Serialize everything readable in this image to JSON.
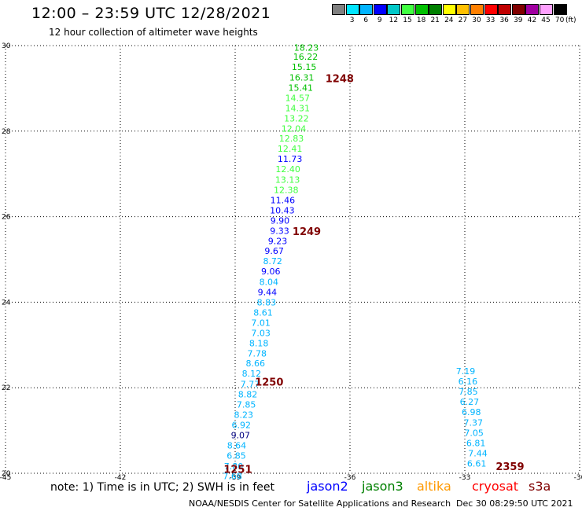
{
  "header": {
    "title": "12:00 – 23:59 UTC 12/28/2021",
    "subtitle": "12 hour collection of altimeter wave heights"
  },
  "colorbar": {
    "unit": "(ft)",
    "items": [
      {
        "label": "",
        "color": "#808080"
      },
      {
        "label": "3",
        "color": "#00e5ff"
      },
      {
        "label": "6",
        "color": "#00b4ff"
      },
      {
        "label": "9",
        "color": "#0000ff"
      },
      {
        "label": "12",
        "color": "#00c8c8"
      },
      {
        "label": "15",
        "color": "#40ff40"
      },
      {
        "label": "18",
        "color": "#00c000"
      },
      {
        "label": "21",
        "color": "#008000"
      },
      {
        "label": "24",
        "color": "#ffff00"
      },
      {
        "label": "27",
        "color": "#ffc000"
      },
      {
        "label": "30",
        "color": "#ff8000"
      },
      {
        "label": "33",
        "color": "#ff0000"
      },
      {
        "label": "36",
        "color": "#c00000"
      },
      {
        "label": "39",
        "color": "#800000"
      },
      {
        "label": "42",
        "color": "#a000a0"
      },
      {
        "label": "45",
        "color": "#ffa0ff"
      },
      {
        "label": "70",
        "color": "#000000"
      }
    ]
  },
  "footer": {
    "note": "note:  1) Time is in UTC;  2) SWH is in feet",
    "satellites": [
      {
        "name": "jason2",
        "color": "#0000ff"
      },
      {
        "name": "jason3",
        "color": "#008000"
      },
      {
        "name": "altika",
        "color": "#ff9900"
      },
      {
        "name": "cryosat",
        "color": "#ff0000"
      },
      {
        "name": "s3a",
        "color": "#800000"
      }
    ],
    "credit": "NOAA/NESDIS Center for Satellite Applications and Research",
    "generated": "Dec 30 08:29:50 UTC 2021"
  },
  "chart_data": {
    "type": "scatter",
    "title": "12:00 – 23:59 UTC 12/28/2021",
    "subtitle": "12 hour collection of altimeter wave heights",
    "xlim": [
      -45,
      -30
    ],
    "ylim": [
      20,
      30
    ],
    "grid": true,
    "x_ticks": [
      "-45",
      "-42",
      "-39",
      "-36",
      "-33",
      "-30"
    ],
    "y_ticks": [
      "20",
      "22",
      "24",
      "26",
      "28",
      "30"
    ],
    "points": [
      {
        "x": -37.14,
        "y": 29.95,
        "label": "18.23",
        "color": "#00c000"
      },
      {
        "x": -37.16,
        "y": 29.74,
        "label": "16.22",
        "color": "#00c000"
      },
      {
        "x": -37.2,
        "y": 29.5,
        "label": "15.15",
        "color": "#00c000"
      },
      {
        "x": -37.26,
        "y": 29.26,
        "label": "16.31",
        "color": "#00c000"
      },
      {
        "x": -37.29,
        "y": 29.02,
        "label": "15.41",
        "color": "#00c000"
      },
      {
        "x": -37.37,
        "y": 28.78,
        "label": "14.57",
        "color": "#40ff40"
      },
      {
        "x": -37.37,
        "y": 28.54,
        "label": "14.31",
        "color": "#40ff40"
      },
      {
        "x": -37.4,
        "y": 28.3,
        "label": "13.22",
        "color": "#40ff40"
      },
      {
        "x": -37.47,
        "y": 28.06,
        "label": "12.04",
        "color": "#40ff40"
      },
      {
        "x": -37.53,
        "y": 27.83,
        "label": "12.83",
        "color": "#40ff40"
      },
      {
        "x": -37.57,
        "y": 27.59,
        "label": "12.41",
        "color": "#40ff40"
      },
      {
        "x": -37.57,
        "y": 27.35,
        "label": "11.73",
        "color": "#0000ff"
      },
      {
        "x": -37.62,
        "y": 27.11,
        "label": "12.40",
        "color": "#40ff40"
      },
      {
        "x": -37.63,
        "y": 26.87,
        "label": "13.13",
        "color": "#40ff40"
      },
      {
        "x": -37.67,
        "y": 26.63,
        "label": "12.38",
        "color": "#40ff40"
      },
      {
        "x": -37.76,
        "y": 26.39,
        "label": "11.46",
        "color": "#0000ff"
      },
      {
        "x": -37.77,
        "y": 26.15,
        "label": "10.43",
        "color": "#0000ff"
      },
      {
        "x": -37.83,
        "y": 25.91,
        "label": "9.90",
        "color": "#0000ff"
      },
      {
        "x": -37.84,
        "y": 25.67,
        "label": "9.33",
        "color": "#0000ff"
      },
      {
        "x": -37.89,
        "y": 25.43,
        "label": "9.23",
        "color": "#0000ff"
      },
      {
        "x": -37.98,
        "y": 25.2,
        "label": "9.67",
        "color": "#0000ff"
      },
      {
        "x": -38.02,
        "y": 24.96,
        "label": "8.72",
        "color": "#00b4ff"
      },
      {
        "x": -38.07,
        "y": 24.72,
        "label": "9.06",
        "color": "#0000ff"
      },
      {
        "x": -38.12,
        "y": 24.48,
        "label": "8.04",
        "color": "#00b4ff"
      },
      {
        "x": -38.16,
        "y": 24.24,
        "label": "9.44",
        "color": "#0000ff"
      },
      {
        "x": -38.18,
        "y": 24.0,
        "label": "8.83",
        "color": "#00b4ff"
      },
      {
        "x": -38.27,
        "y": 23.76,
        "label": "8.61",
        "color": "#00b4ff"
      },
      {
        "x": -38.33,
        "y": 23.52,
        "label": "7.01",
        "color": "#00b4ff"
      },
      {
        "x": -38.33,
        "y": 23.28,
        "label": "7.03",
        "color": "#00b4ff"
      },
      {
        "x": -38.38,
        "y": 23.04,
        "label": "8.18",
        "color": "#00b4ff"
      },
      {
        "x": -38.43,
        "y": 22.8,
        "label": "7.78",
        "color": "#00b4ff"
      },
      {
        "x": -38.47,
        "y": 22.57,
        "label": "8.66",
        "color": "#00b4ff"
      },
      {
        "x": -38.57,
        "y": 22.33,
        "label": "8.12",
        "color": "#00b4ff"
      },
      {
        "x": -38.61,
        "y": 22.09,
        "label": "7.77",
        "color": "#00b4ff"
      },
      {
        "x": -38.67,
        "y": 21.85,
        "label": "8.82",
        "color": "#00b4ff"
      },
      {
        "x": -38.71,
        "y": 21.61,
        "label": "7.85",
        "color": "#00b4ff"
      },
      {
        "x": -38.78,
        "y": 21.37,
        "label": "8.23",
        "color": "#00b4ff"
      },
      {
        "x": -38.84,
        "y": 21.13,
        "label": "6.92",
        "color": "#00b4ff"
      },
      {
        "x": -38.86,
        "y": 20.89,
        "label": "9.07",
        "color": "#000080"
      },
      {
        "x": -38.96,
        "y": 20.65,
        "label": "8.64",
        "color": "#00b4ff"
      },
      {
        "x": -38.97,
        "y": 20.41,
        "label": "6.85",
        "color": "#00b4ff"
      },
      {
        "x": -39.04,
        "y": 20.17,
        "label": "7.80",
        "color": "#00b4ff"
      },
      {
        "x": -39.07,
        "y": 19.94,
        "label": "7.68",
        "color": "#00b4ff"
      },
      {
        "x": -32.98,
        "y": 22.39,
        "label": "7.19",
        "color": "#00b4ff"
      },
      {
        "x": -32.92,
        "y": 22.15,
        "label": "6.16",
        "color": "#00b4ff"
      },
      {
        "x": -32.91,
        "y": 21.91,
        "label": "7.85",
        "color": "#00b4ff"
      },
      {
        "x": -32.88,
        "y": 21.67,
        "label": "6.27",
        "color": "#00b4ff"
      },
      {
        "x": -32.83,
        "y": 21.43,
        "label": "6.98",
        "color": "#00b4ff"
      },
      {
        "x": -32.78,
        "y": 21.19,
        "label": "7.37",
        "color": "#00b4ff"
      },
      {
        "x": -32.76,
        "y": 20.95,
        "label": "7.05",
        "color": "#00b4ff"
      },
      {
        "x": -32.71,
        "y": 20.71,
        "label": "6.81",
        "color": "#00b4ff"
      },
      {
        "x": -32.66,
        "y": 20.47,
        "label": "7.44",
        "color": "#00b4ff"
      },
      {
        "x": -32.69,
        "y": 20.23,
        "label": "6.61",
        "color": "#00b4ff"
      }
    ],
    "time_labels": [
      {
        "x": -36.27,
        "y": 29.24,
        "label": "1248"
      },
      {
        "x": -37.13,
        "y": 25.66,
        "label": "1249"
      },
      {
        "x": -38.11,
        "y": 22.14,
        "label": "1250"
      },
      {
        "x": -38.93,
        "y": 20.1,
        "label": "1251"
      },
      {
        "x": -31.82,
        "y": 20.17,
        "label": "2359"
      }
    ]
  }
}
